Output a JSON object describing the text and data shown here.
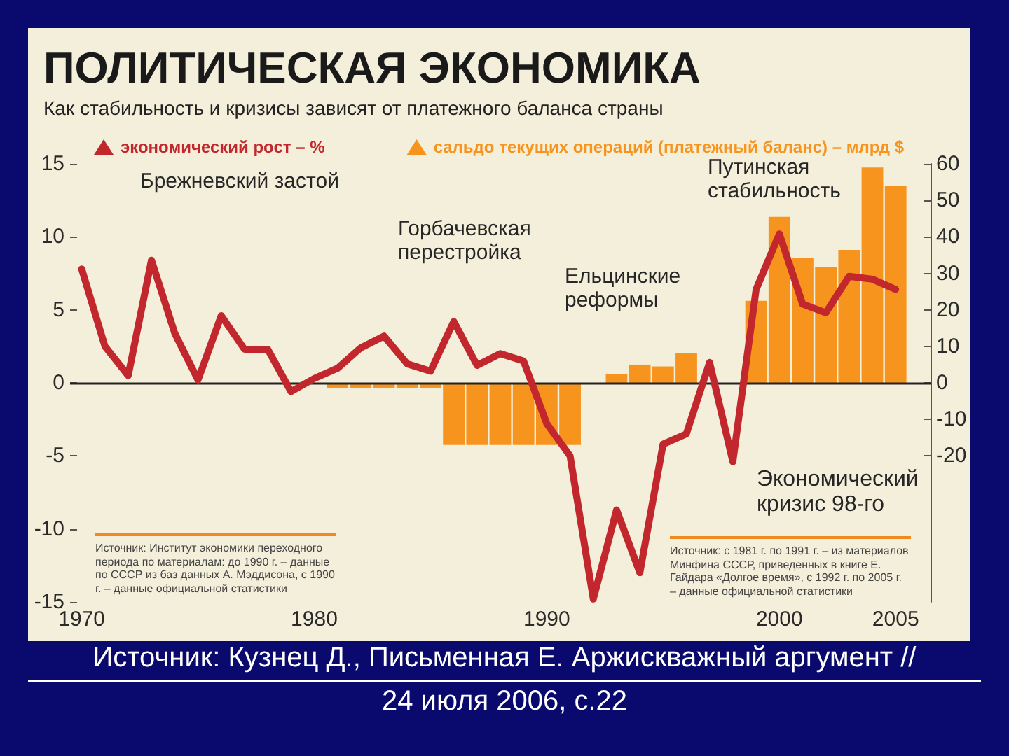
{
  "chart_data": {
    "type": "line",
    "title": "ПОЛИТИЧЕСКАЯ ЭКОНОМИКА",
    "subtitle": "Как стабильность и кризисы зависят от платежного баланса страны",
    "annotations": [
      "Брежневский застой",
      "Горбачевская перестройка",
      "Ельцинские реформы",
      "Путинская стабильность",
      "Экономический кризис 98-го",
      "Источник: Институт экономики переходного периода по материалам: до 1990 г. – данные по СССР из баз данных А. Мэддисона, с 1990 г. – данные официальной статистики",
      "Источник: с 1981 г. по 1991 г. – из материалов Минфина СССР, приведенных в книге Е. Гайдара «Долгое время», с 1992 г. по 2005 г. – данные официальной статистики",
      "Источник: Кузнец Д., Письменная Е. Аржискважный аргумент // 24 июля 2006, с.22"
    ],
    "x": [
      1970,
      1971,
      1972,
      1973,
      1974,
      1975,
      1976,
      1977,
      1978,
      1979,
      1980,
      1981,
      1982,
      1983,
      1984,
      1985,
      1986,
      1987,
      1988,
      1989,
      1990,
      1991,
      1992,
      1993,
      1994,
      1995,
      1996,
      1997,
      1998,
      1999,
      2000,
      2001,
      2002,
      2003,
      2004,
      2005
    ],
    "xlim": [
      1969.5,
      2006.5
    ],
    "xticks": [
      1970,
      1980,
      1990,
      2000,
      2005
    ],
    "ylim": [
      -15,
      15
    ],
    "yticks": [
      -15,
      -10,
      -5,
      0,
      5,
      10,
      15
    ],
    "y2lim": [
      -60,
      60
    ],
    "y2ticks": [
      -20,
      -10,
      0,
      10,
      20,
      30,
      40,
      50,
      60
    ],
    "ref_lines": [
      {
        "axis": "y",
        "value": 0,
        "color": "#222222"
      }
    ],
    "legend": "top",
    "series": [
      {
        "name": "экономический рост – %",
        "color": "#c1272d",
        "values": [
          7.8,
          2.5,
          0.5,
          8.4,
          3.4,
          0.2,
          4.6,
          2.3,
          2.3,
          -0.6,
          0.3,
          1.0,
          2.4,
          3.2,
          1.3,
          0.8,
          4.2,
          1.2,
          2.0,
          1.5,
          -2.8,
          -5.0,
          -14.8,
          -8.7,
          -13.0,
          -4.2,
          -3.5,
          1.4,
          -5.4,
          6.4,
          10.2,
          5.4,
          4.8,
          7.3,
          7.1,
          6.4
        ]
      },
      {
        "name": "сальдо текущих операций (платежный баланс) – млрд $",
        "type": "bar",
        "axis": "y2",
        "color": "#f7941d",
        "x": [
          1981,
          1982,
          1983,
          1984,
          1985,
          1986,
          1987,
          1988,
          1989,
          1990,
          1991,
          1992,
          1993,
          1994,
          1995,
          1996,
          1997,
          1998,
          1999,
          2000,
          2001,
          2002,
          2003,
          2004,
          2005
        ],
        "values": [
          -1.5,
          -1.5,
          -1.5,
          -1.5,
          -1.5,
          -17,
          -17,
          -17,
          -17,
          -17,
          -17,
          null,
          2.4,
          5,
          4.5,
          8.2,
          null,
          null,
          22.5,
          45.5,
          34.2,
          31.7,
          36.4,
          59,
          54
        ]
      }
    ]
  }
}
